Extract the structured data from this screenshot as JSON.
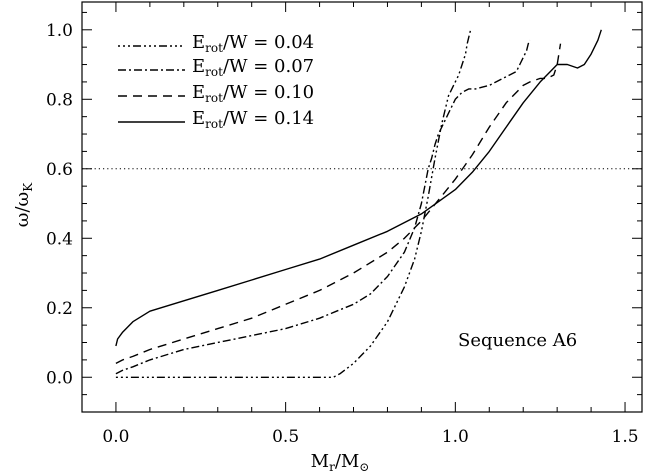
{
  "chart_data": {
    "type": "line",
    "title": "",
    "xlabel": {
      "main": "M",
      "sub1": "r",
      "mid": "/M",
      "sub2": "⊙"
    },
    "ylabel": {
      "main": "ω/ω",
      "sub": "K"
    },
    "xlim": [
      -0.1,
      1.55
    ],
    "ylim": [
      -0.1,
      1.08
    ],
    "xticks": [
      0.0,
      0.5,
      1.0,
      1.5
    ],
    "xtick_labels": [
      "0.0",
      "0.5",
      "1.0",
      "1.5"
    ],
    "yticks": [
      0.0,
      0.2,
      0.4,
      0.6,
      0.8,
      1.0
    ],
    "ytick_labels": [
      "0.0",
      "0.2",
      "0.4",
      "0.6",
      "0.8",
      "1.0"
    ],
    "annotation": "Sequence A6",
    "reference_line": {
      "y": 0.6,
      "style": "dotted"
    },
    "legend_position": "top-left",
    "series": [
      {
        "name": "0.04",
        "label_main": "E",
        "label_sub": "rot",
        "label_rest": "/W  =  0.04",
        "dash": "2 3 2 3 2 3 8 3",
        "x": [
          0.0,
          0.1,
          0.3,
          0.5,
          0.64,
          0.66,
          0.7,
          0.75,
          0.8,
          0.85,
          0.88,
          0.9,
          0.92,
          0.94,
          0.96,
          0.98,
          1.0,
          1.01,
          1.02,
          1.03,
          1.035,
          1.04,
          1.045
        ],
        "y": [
          0.0,
          0.0,
          0.0,
          0.0,
          0.0,
          0.01,
          0.04,
          0.09,
          0.16,
          0.26,
          0.34,
          0.42,
          0.52,
          0.63,
          0.73,
          0.81,
          0.85,
          0.87,
          0.9,
          0.93,
          0.96,
          0.98,
          1.0
        ]
      },
      {
        "name": "0.07",
        "label_main": "E",
        "label_sub": "rot",
        "label_rest": "/W  =  0.07",
        "dash": "8 3 2 3",
        "x": [
          0.0,
          0.02,
          0.05,
          0.1,
          0.2,
          0.3,
          0.4,
          0.5,
          0.6,
          0.65,
          0.7,
          0.75,
          0.8,
          0.85,
          0.88,
          0.9,
          0.91,
          0.92,
          0.93,
          0.94,
          0.95,
          0.96,
          0.98,
          1.0,
          1.02,
          1.04,
          1.06,
          1.08,
          1.1,
          1.12,
          1.14,
          1.16,
          1.18,
          1.19,
          1.2,
          1.21,
          1.215,
          1.22
        ],
        "y": [
          0.01,
          0.02,
          0.03,
          0.05,
          0.08,
          0.1,
          0.12,
          0.14,
          0.17,
          0.19,
          0.21,
          0.24,
          0.29,
          0.36,
          0.43,
          0.5,
          0.55,
          0.6,
          0.63,
          0.67,
          0.7,
          0.72,
          0.76,
          0.8,
          0.82,
          0.83,
          0.83,
          0.835,
          0.84,
          0.85,
          0.86,
          0.87,
          0.88,
          0.9,
          0.92,
          0.94,
          0.96,
          0.97
        ]
      },
      {
        "name": "0.10",
        "label_main": "E",
        "label_sub": "rot",
        "label_rest": "/W  =  0.10",
        "dash": "9 6",
        "x": [
          0.0,
          0.02,
          0.05,
          0.1,
          0.2,
          0.3,
          0.4,
          0.5,
          0.6,
          0.7,
          0.8,
          0.85,
          0.9,
          0.95,
          1.0,
          1.05,
          1.1,
          1.15,
          1.2,
          1.22,
          1.25,
          1.27,
          1.29,
          1.3,
          1.31
        ],
        "y": [
          0.04,
          0.05,
          0.06,
          0.08,
          0.11,
          0.14,
          0.17,
          0.21,
          0.25,
          0.3,
          0.36,
          0.4,
          0.45,
          0.51,
          0.57,
          0.64,
          0.72,
          0.79,
          0.84,
          0.85,
          0.86,
          0.86,
          0.87,
          0.9,
          0.96
        ]
      },
      {
        "name": "0.14",
        "label_main": "E",
        "label_sub": "rot",
        "label_rest": "/W  =  0.14",
        "dash": "",
        "x": [
          0.0,
          0.005,
          0.02,
          0.05,
          0.1,
          0.2,
          0.3,
          0.4,
          0.5,
          0.6,
          0.7,
          0.8,
          0.9,
          1.0,
          1.05,
          1.1,
          1.15,
          1.2,
          1.25,
          1.28,
          1.3,
          1.33,
          1.36,
          1.38,
          1.4,
          1.42,
          1.43
        ],
        "y": [
          0.09,
          0.11,
          0.13,
          0.16,
          0.19,
          0.22,
          0.25,
          0.28,
          0.31,
          0.34,
          0.38,
          0.42,
          0.47,
          0.54,
          0.59,
          0.65,
          0.72,
          0.79,
          0.85,
          0.88,
          0.9,
          0.9,
          0.89,
          0.9,
          0.93,
          0.97,
          1.0
        ]
      }
    ]
  }
}
